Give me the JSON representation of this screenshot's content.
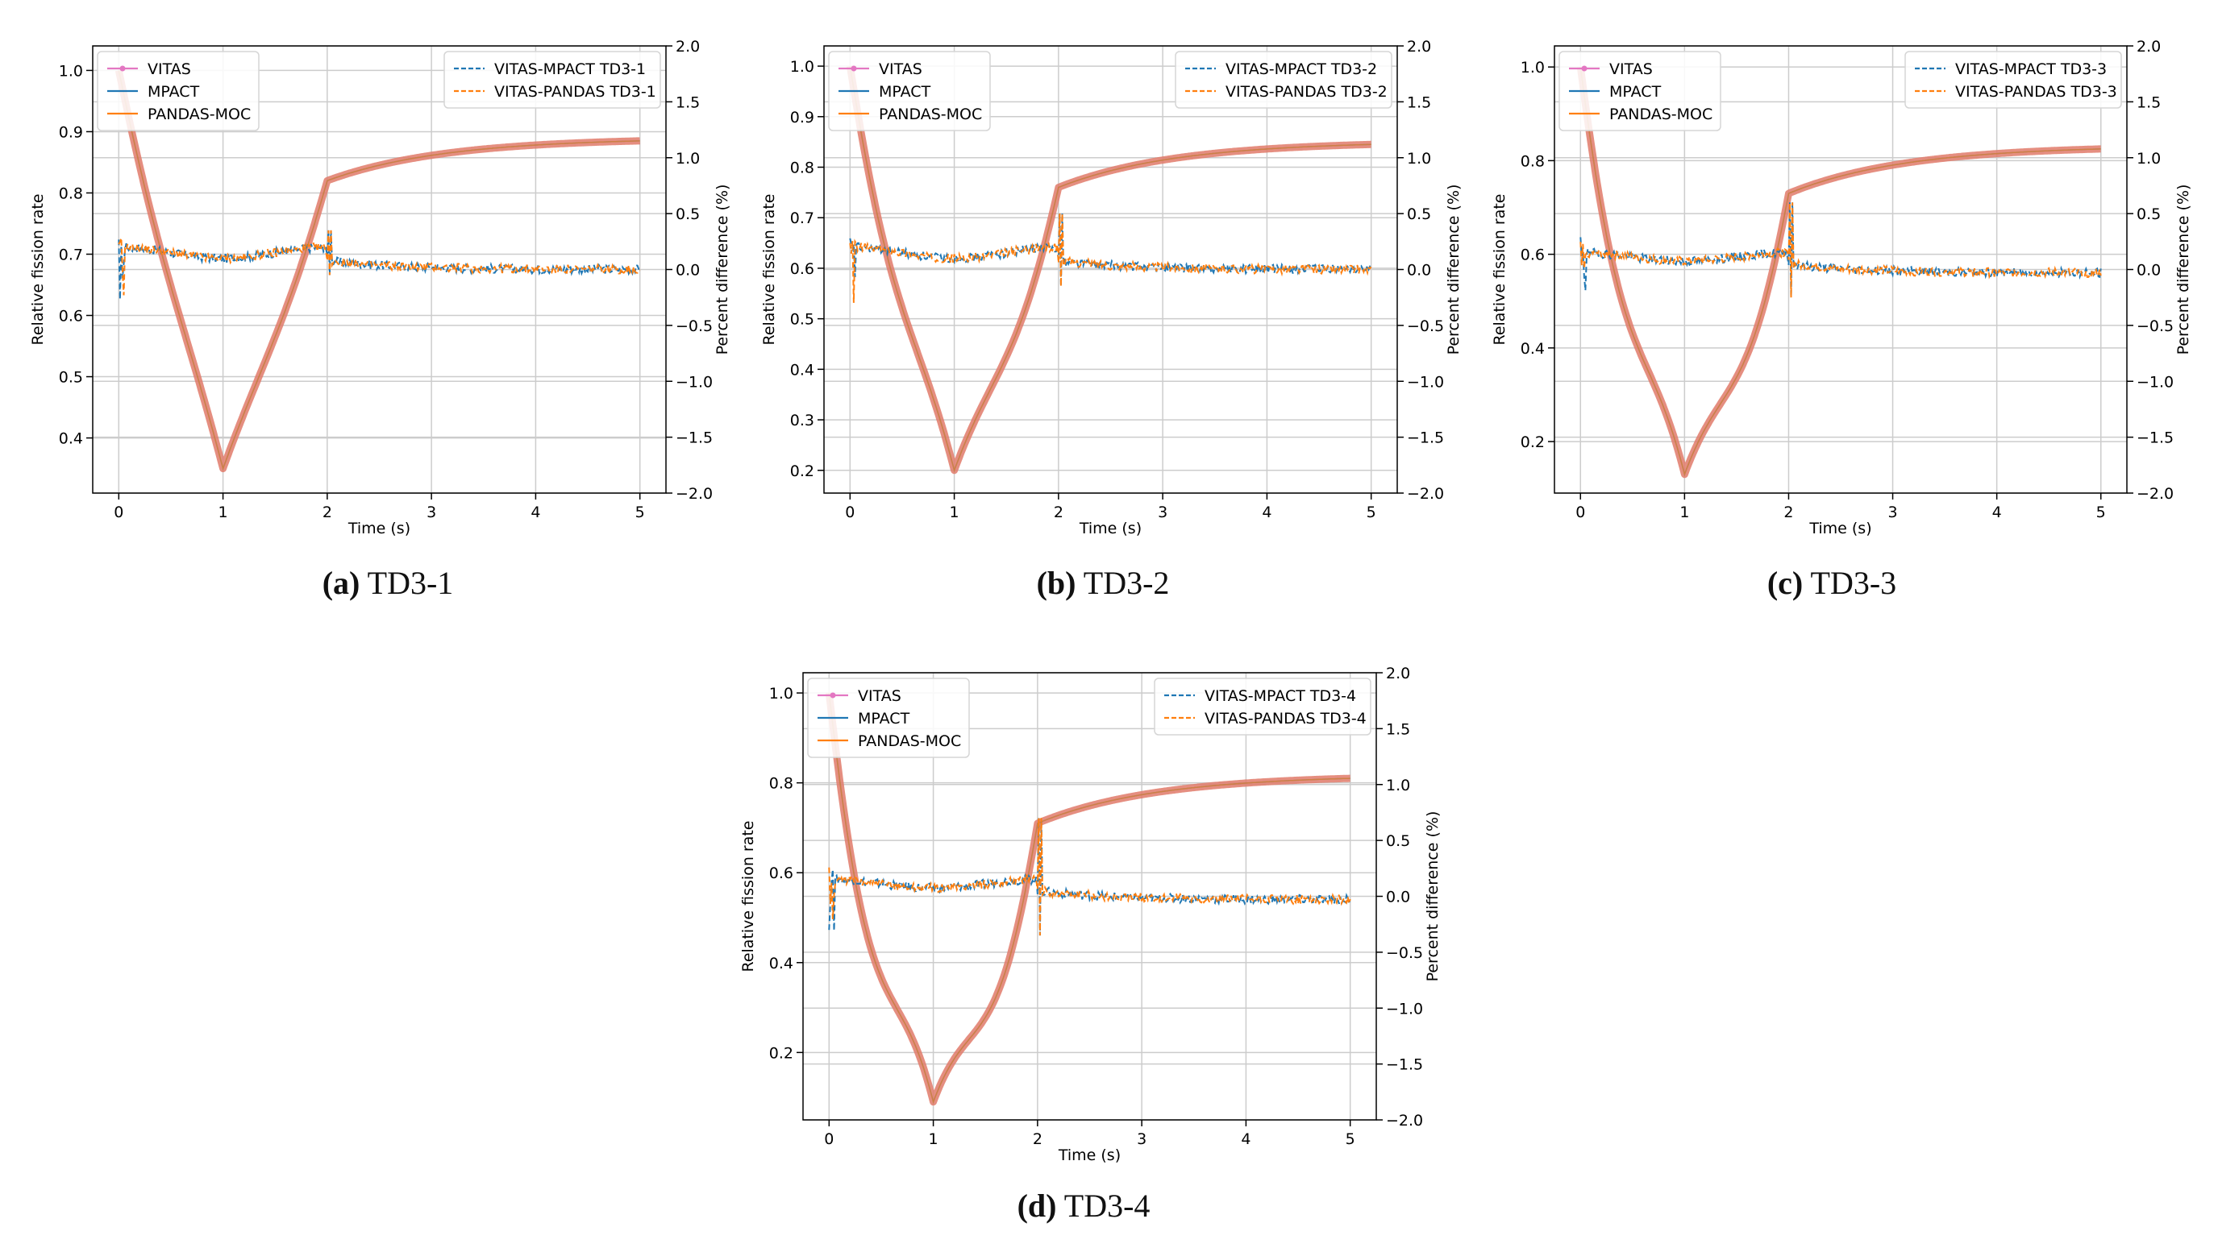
{
  "figure": {
    "subplots": [
      {
        "caption_letter": "(a)",
        "caption_text": "TD3-1"
      },
      {
        "caption_letter": "(b)",
        "caption_text": "TD3-2"
      },
      {
        "caption_letter": "(c)",
        "caption_text": "TD3-3"
      },
      {
        "caption_letter": "(d)",
        "caption_text": "TD3-4"
      }
    ]
  },
  "chart_data": [
    {
      "type": "line",
      "panel": "(a) TD3-1",
      "xlabel": "Time (s)",
      "ylabel": "Relative fission rate",
      "y2label": "Percent difference (%)",
      "xlim": [
        -0.25,
        5.25
      ],
      "ylim": [
        0.31,
        1.04
      ],
      "y2lim": [
        -2.0,
        2.0
      ],
      "xticks": [
        0,
        1,
        2,
        3,
        4,
        5
      ],
      "yticks": [
        0.4,
        0.5,
        0.6,
        0.7,
        0.8,
        0.9,
        1.0
      ],
      "y2ticks": [
        -2.0,
        -1.5,
        -1.0,
        -0.5,
        0.0,
        0.5,
        1.0,
        1.5,
        2.0
      ],
      "grid": true,
      "legend_left": [
        "VITAS",
        "MPACT",
        "PANDAS-MOC"
      ],
      "legend_right": [
        "VITAS-MPACT TD3-1",
        "VITAS-PANDAS TD3-1"
      ],
      "legend_placement": [
        "top-left",
        "top-right"
      ],
      "fission_rate": {
        "x": [
          0,
          1,
          2,
          3,
          4,
          5
        ],
        "y": [
          1.0,
          0.35,
          0.82,
          0.86,
          0.875,
          0.885
        ],
        "dip_shape": 0.15
      },
      "percent_difference": {
        "early_level": 0.2,
        "late_level": 0.0,
        "spike": [
          -0.05,
          0.35
        ],
        "noise": 0.04
      },
      "series": [
        {
          "name": "VITAS",
          "color": "#e377c2",
          "style": "solid-marker"
        },
        {
          "name": "MPACT",
          "color": "#1f77b4",
          "style": "solid"
        },
        {
          "name": "PANDAS-MOC",
          "color": "#ff7f0e",
          "style": "solid"
        },
        {
          "name": "VITAS-MPACT TD3-1",
          "color": "#1f77b4",
          "style": "dashed"
        },
        {
          "name": "VITAS-PANDAS TD3-1",
          "color": "#ff7f0e",
          "style": "dashed"
        }
      ]
    },
    {
      "type": "line",
      "panel": "(b) TD3-2",
      "xlabel": "Time (s)",
      "ylabel": "Relative fission rate",
      "y2label": "Percent difference (%)",
      "xlim": [
        -0.25,
        5.25
      ],
      "ylim": [
        0.155,
        1.04
      ],
      "y2lim": [
        -2.0,
        2.0
      ],
      "xticks": [
        0,
        1,
        2,
        3,
        4,
        5
      ],
      "yticks": [
        0.2,
        0.3,
        0.4,
        0.5,
        0.6,
        0.7,
        0.8,
        0.9,
        1.0
      ],
      "y2ticks": [
        -2.0,
        -1.5,
        -1.0,
        -0.5,
        0.0,
        0.5,
        1.0,
        1.5,
        2.0
      ],
      "grid": true,
      "legend_left": [
        "VITAS",
        "MPACT",
        "PANDAS-MOC"
      ],
      "legend_right": [
        "VITAS-MPACT TD3-2",
        "VITAS-PANDAS TD3-2"
      ],
      "legend_placement": [
        "top-left",
        "top-right"
      ],
      "fission_rate": {
        "x": [
          0,
          1,
          2,
          3,
          4,
          5
        ],
        "y": [
          1.0,
          0.2,
          0.76,
          0.81,
          0.83,
          0.845
        ],
        "dip_shape": 0.35
      },
      "percent_difference": {
        "early_level": 0.2,
        "late_level": 0.0,
        "spike": [
          -0.15,
          0.5
        ],
        "noise": 0.04
      },
      "series": [
        {
          "name": "VITAS",
          "color": "#e377c2",
          "style": "solid-marker"
        },
        {
          "name": "MPACT",
          "color": "#1f77b4",
          "style": "solid"
        },
        {
          "name": "PANDAS-MOC",
          "color": "#ff7f0e",
          "style": "solid"
        },
        {
          "name": "VITAS-MPACT TD3-2",
          "color": "#1f77b4",
          "style": "dashed"
        },
        {
          "name": "VITAS-PANDAS TD3-2",
          "color": "#ff7f0e",
          "style": "dashed"
        }
      ]
    },
    {
      "type": "line",
      "panel": "(c) TD3-3",
      "xlabel": "Time (s)",
      "ylabel": "Relative fission rate",
      "y2label": "Percent difference (%)",
      "xlim": [
        -0.25,
        5.25
      ],
      "ylim": [
        0.09,
        1.045
      ],
      "y2lim": [
        -2.0,
        2.0
      ],
      "xticks": [
        0,
        1,
        2,
        3,
        4,
        5
      ],
      "yticks": [
        0.2,
        0.4,
        0.6,
        0.8,
        1.0
      ],
      "y2ticks": [
        -2.0,
        -1.5,
        -1.0,
        -0.5,
        0.0,
        0.5,
        1.0,
        1.5,
        2.0
      ],
      "grid": true,
      "legend_left": [
        "VITAS",
        "MPACT",
        "PANDAS-MOC"
      ],
      "legend_right": [
        "VITAS-MPACT TD3-3",
        "VITAS-PANDAS TD3-3"
      ],
      "legend_placement": [
        "top-left",
        "top-right"
      ],
      "fission_rate": {
        "x": [
          0,
          1,
          2,
          3,
          4,
          5
        ],
        "y": [
          1.0,
          0.13,
          0.73,
          0.78,
          0.81,
          0.825
        ],
        "dip_shape": 0.55
      },
      "percent_difference": {
        "early_level": 0.15,
        "late_level": -0.03,
        "spike": [
          -0.25,
          0.6
        ],
        "noise": 0.04
      },
      "series": [
        {
          "name": "VITAS",
          "color": "#e377c2",
          "style": "solid-marker"
        },
        {
          "name": "MPACT",
          "color": "#1f77b4",
          "style": "solid"
        },
        {
          "name": "PANDAS-MOC",
          "color": "#ff7f0e",
          "style": "solid"
        },
        {
          "name": "VITAS-MPACT TD3-3",
          "color": "#1f77b4",
          "style": "dashed"
        },
        {
          "name": "VITAS-PANDAS TD3-3",
          "color": "#ff7f0e",
          "style": "dashed"
        }
      ]
    },
    {
      "type": "line",
      "panel": "(d) TD3-4",
      "xlabel": "Time (s)",
      "ylabel": "Relative fission rate",
      "y2label": "Percent difference (%)",
      "xlim": [
        -0.25,
        5.25
      ],
      "ylim": [
        0.05,
        1.045
      ],
      "y2lim": [
        -2.0,
        2.0
      ],
      "xticks": [
        0,
        1,
        2,
        3,
        4,
        5
      ],
      "yticks": [
        0.2,
        0.4,
        0.6,
        0.8,
        1.0
      ],
      "y2ticks": [
        -2.0,
        -1.5,
        -1.0,
        -0.5,
        0.0,
        0.5,
        1.0,
        1.5,
        2.0
      ],
      "grid": true,
      "legend_left": [
        "VITAS",
        "MPACT",
        "PANDAS-MOC"
      ],
      "legend_right": [
        "VITAS-MPACT TD3-4",
        "VITAS-PANDAS TD3-4"
      ],
      "legend_placement": [
        "top-left",
        "top-right"
      ],
      "fission_rate": {
        "x": [
          0,
          1,
          2,
          3,
          4,
          5
        ],
        "y": [
          1.0,
          0.09,
          0.71,
          0.77,
          0.795,
          0.81
        ],
        "dip_shape": 0.7
      },
      "percent_difference": {
        "early_level": 0.15,
        "late_level": -0.03,
        "spike": [
          -0.35,
          0.7
        ],
        "noise": 0.04
      },
      "series": [
        {
          "name": "VITAS",
          "color": "#e377c2",
          "style": "solid-marker"
        },
        {
          "name": "MPACT",
          "color": "#1f77b4",
          "style": "solid"
        },
        {
          "name": "PANDAS-MOC",
          "color": "#ff7f0e",
          "style": "solid"
        },
        {
          "name": "VITAS-MPACT TD3-4",
          "color": "#1f77b4",
          "style": "dashed"
        },
        {
          "name": "VITAS-PANDAS TD3-4",
          "color": "#ff7f0e",
          "style": "dashed"
        }
      ]
    }
  ]
}
